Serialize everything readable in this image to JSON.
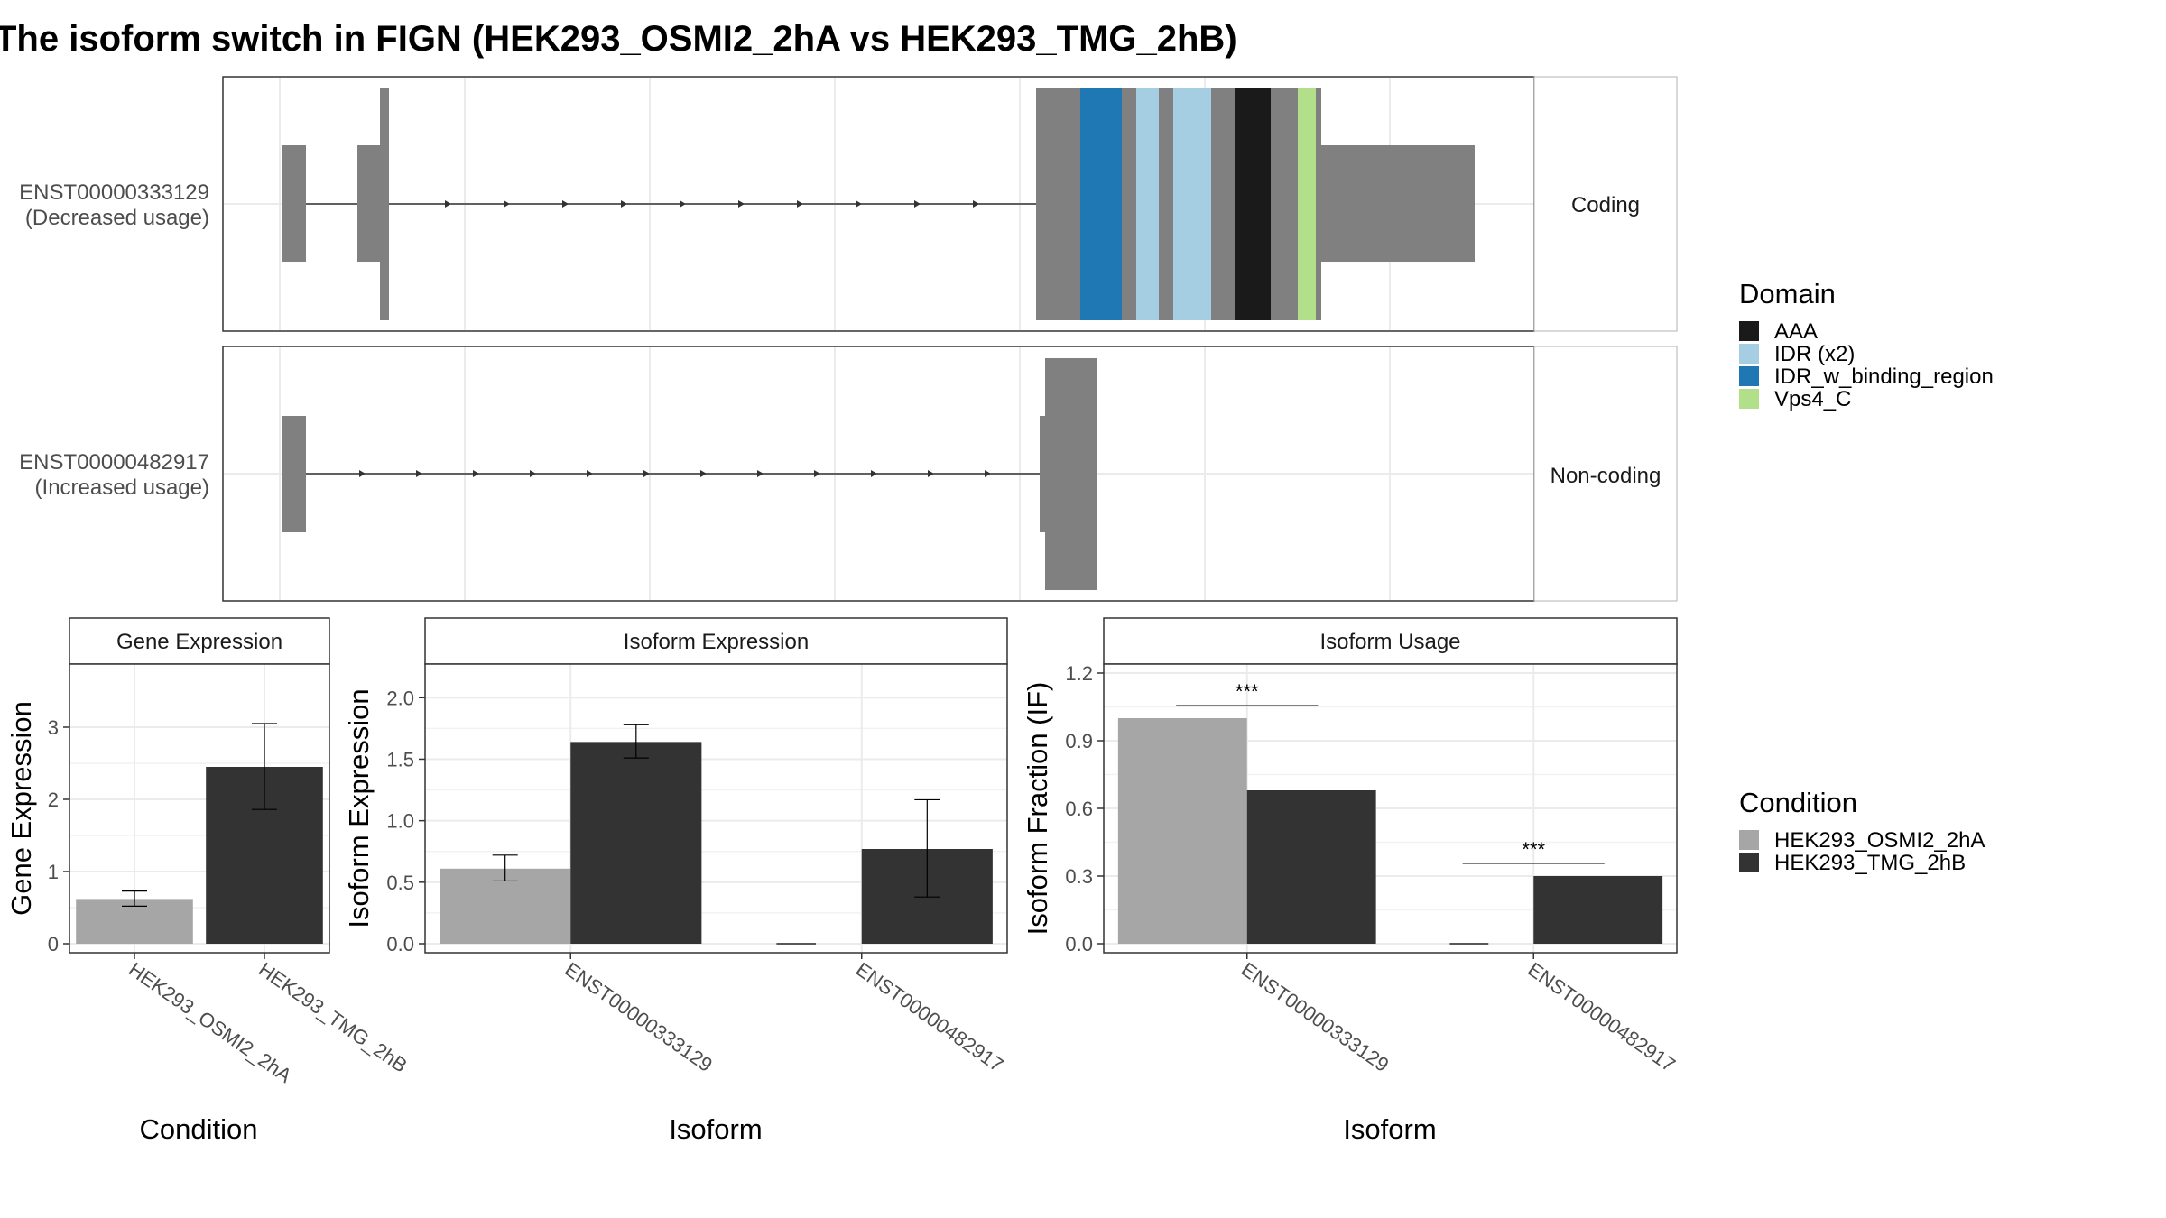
{
  "title": "The isoform switch in FIGN (HEK293_OSMI2_2hA vs HEK293_TMG_2hB)",
  "transcripts": [
    {
      "id": "ENST00000333129",
      "usage": "(Decreased usage)",
      "type": "Coding"
    },
    {
      "id": "ENST00000482917",
      "usage": "(Increased usage)",
      "type": "Non-coding"
    }
  ],
  "domain_legend": {
    "title": "Domain",
    "items": [
      {
        "label": "AAA",
        "color": "#1a1a1a"
      },
      {
        "label": "IDR (x2)",
        "color": "#a6cee3"
      },
      {
        "label": "IDR_w_binding_region",
        "color": "#1f78b4"
      },
      {
        "label": "Vps4_C",
        "color": "#b2df8a"
      }
    ]
  },
  "condition_legend": {
    "title": "Condition",
    "items": [
      {
        "label": "HEK293_OSMI2_2hA",
        "color": "#a6a6a6"
      },
      {
        "label": "HEK293_TMG_2hB",
        "color": "#333333"
      }
    ]
  },
  "chart_data": [
    {
      "type": "bar",
      "title": "Gene Expression",
      "xlabel": "Condition",
      "ylabel": "Gene Expression",
      "categories": [
        "HEK293_OSMI2_2hA",
        "HEK293_TMG_2hB"
      ],
      "values": [
        0.62,
        2.45
      ],
      "error": [
        [
          0.52,
          0.73
        ],
        [
          1.86,
          3.05
        ]
      ],
      "yticks": [
        0,
        1,
        2,
        3
      ],
      "ylim": [
        0,
        3.75
      ]
    },
    {
      "type": "bar",
      "title": "Isoform Expression",
      "xlabel": "Isoform",
      "ylabel": "Isoform Expression",
      "categories": [
        "ENST00000333129",
        "ENST00000482917"
      ],
      "series": [
        {
          "name": "HEK293_OSMI2_2hA",
          "values": [
            0.61,
            0.0
          ],
          "error": [
            [
              0.51,
              0.72
            ],
            [
              0.0,
              0.0
            ]
          ]
        },
        {
          "name": "HEK293_TMG_2hB",
          "values": [
            1.64,
            0.77
          ],
          "error": [
            [
              1.51,
              1.78
            ],
            [
              0.38,
              1.17
            ]
          ]
        }
      ],
      "yticks": [
        "0.0",
        "0.5",
        "1.0",
        "1.5",
        "2.0"
      ],
      "ylim": [
        0,
        2.2
      ]
    },
    {
      "type": "bar",
      "title": "Isoform Usage",
      "xlabel": "Isoform",
      "ylabel": "Isoform Fraction (IF)",
      "categories": [
        "ENST00000333129",
        "ENST00000482917"
      ],
      "series": [
        {
          "name": "HEK293_OSMI2_2hA",
          "values": [
            1.0,
            0.0
          ]
        },
        {
          "name": "HEK293_TMG_2hB",
          "values": [
            0.68,
            0.3
          ]
        }
      ],
      "significance": [
        "***",
        "***"
      ],
      "yticks": [
        "0.0",
        "0.3",
        "0.6",
        "0.9",
        "1.2"
      ],
      "ylim": [
        0,
        1.2
      ]
    }
  ]
}
